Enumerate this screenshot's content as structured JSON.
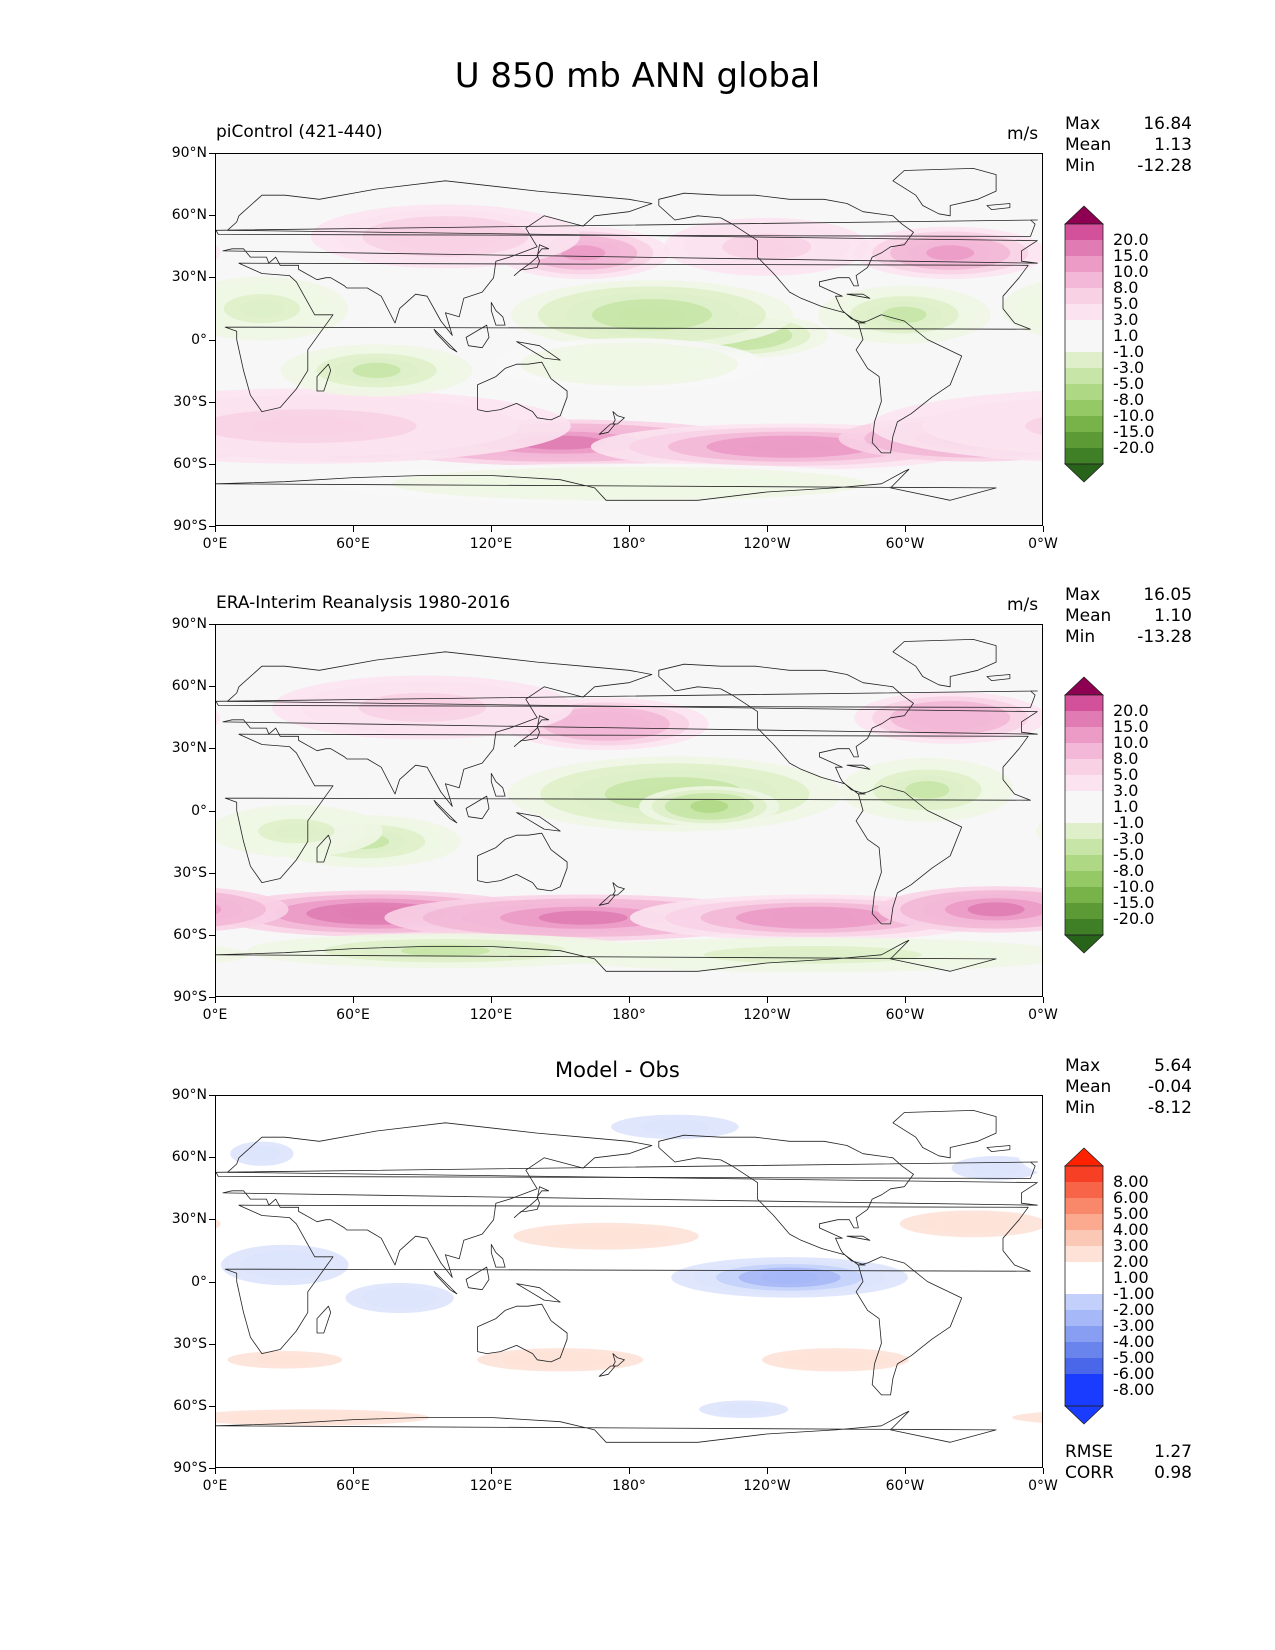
{
  "figure_title": "U 850 mb ANN global",
  "colors": {
    "pos_scale": [
      "#f7f7f7",
      "#fbe3ef",
      "#f8d1e5",
      "#f3b8d7",
      "#eb9bc6",
      "#e07cb3",
      "#d3509b",
      "#c2247f",
      "#a90966",
      "#8e0152"
    ],
    "neg_scale": [
      "#f7f7f7",
      "#eef6e4",
      "#deefc9",
      "#c7e5a6",
      "#afd885",
      "#95c965",
      "#78b34a",
      "#5b9a35",
      "#3f7f26",
      "#276419"
    ],
    "diff_pos": [
      "#ffffff",
      "#fee2d8",
      "#fcc8b6",
      "#fba98f",
      "#f9876a",
      "#f76447",
      "#f63f25",
      "#ff2200"
    ],
    "diff_neg": [
      "#ffffff",
      "#dde4fd",
      "#c3d0fb",
      "#a6b8f7",
      "#889ef3",
      "#6a84ee",
      "#4a67ea",
      "#1a3cff"
    ],
    "coast": "#222222"
  },
  "axes": {
    "yticks": [
      "90°N",
      "60°N",
      "30°N",
      "0°",
      "30°S",
      "60°S",
      "90°S"
    ],
    "xticks": [
      "0°E",
      "60°E",
      "120°E",
      "180°",
      "120°W",
      "60°W",
      "0°W"
    ]
  },
  "panels": [
    {
      "id": "test",
      "label": "piControl (421-440)",
      "units": "m/s",
      "stats": [
        {
          "label": "Max",
          "value": "16.84"
        },
        {
          "label": "Mean",
          "value": "1.13"
        },
        {
          "label": "Min",
          "value": "-12.28"
        }
      ],
      "colorbar": {
        "levels": [
          "20.0",
          "15.0",
          "10.0",
          "8.0",
          "5.0",
          "3.0",
          "1.0",
          "-1.0",
          "-3.0",
          "-5.0",
          "-8.0",
          "-10.0",
          "-15.0",
          "-20.0"
        ],
        "top_color": "#8e0152",
        "bottom_color": "#276419"
      }
    },
    {
      "id": "ref",
      "label": "ERA-Interim Reanalysis 1980-2016",
      "units": "m/s",
      "stats": [
        {
          "label": "Max",
          "value": "16.05"
        },
        {
          "label": "Mean",
          "value": "1.10"
        },
        {
          "label": "Min",
          "value": "-13.28"
        }
      ],
      "colorbar": {
        "levels": [
          "20.0",
          "15.0",
          "10.0",
          "8.0",
          "5.0",
          "3.0",
          "1.0",
          "-1.0",
          "-3.0",
          "-5.0",
          "-8.0",
          "-10.0",
          "-15.0",
          "-20.0"
        ],
        "top_color": "#8e0152",
        "bottom_color": "#276419"
      }
    },
    {
      "id": "diff",
      "title": "Model - Obs",
      "stats": [
        {
          "label": "Max",
          "value": "5.64"
        },
        {
          "label": "Mean",
          "value": "-0.04"
        },
        {
          "label": "Min",
          "value": "-8.12"
        }
      ],
      "extra_stats": [
        {
          "label": "RMSE",
          "value": "1.27"
        },
        {
          "label": "CORR",
          "value": "0.98"
        }
      ],
      "colorbar": {
        "levels": [
          "8.00",
          "6.00",
          "5.00",
          "4.00",
          "3.00",
          "2.00",
          "1.00",
          "-1.00",
          "-2.00",
          "-3.00",
          "-4.00",
          "-5.00",
          "-6.00",
          "-8.00"
        ],
        "top_color": "#ff2200",
        "bottom_color": "#1a3cff"
      }
    }
  ],
  "chart_data": [
    {
      "type": "heatmap",
      "title": "piControl (421-440)",
      "units": "m/s",
      "x": [
        0,
        60,
        120,
        180,
        240,
        300,
        360
      ],
      "xticklabels": [
        "0°E",
        "60°E",
        "120°E",
        "180°",
        "120°W",
        "60°W",
        "0°W"
      ],
      "yticklabels": [
        "90°N",
        "60°N",
        "30°N",
        "0°",
        "30°S",
        "60°S",
        "90°S"
      ],
      "xlim": [
        0,
        360
      ],
      "ylim": [
        -90,
        90
      ],
      "levels": [
        -20,
        -15,
        -10,
        -8,
        -5,
        -3,
        -1,
        1,
        3,
        5,
        8,
        10,
        15,
        20
      ],
      "features": [
        {
          "lon": 60,
          "lat": -48,
          "value": 14,
          "slon": 55,
          "slat": 7
        },
        {
          "lon": 150,
          "lat": -50,
          "value": 11,
          "slon": 60,
          "slat": 7
        },
        {
          "lon": 250,
          "lat": -52,
          "value": 10,
          "slon": 60,
          "slat": 7
        },
        {
          "lon": 330,
          "lat": -48,
          "value": 11,
          "slon": 40,
          "slat": 7
        },
        {
          "lon": 40,
          "lat": -42,
          "value": 4,
          "slon": 80,
          "slat": 12
        },
        {
          "lon": 160,
          "lat": 42,
          "value": 9,
          "slon": 25,
          "slat": 8
        },
        {
          "lon": 320,
          "lat": 42,
          "value": 9,
          "slon": 28,
          "slat": 8
        },
        {
          "lon": 100,
          "lat": 50,
          "value": 5,
          "slon": 40,
          "slat": 10
        },
        {
          "lon": 240,
          "lat": 45,
          "value": 4,
          "slon": 30,
          "slat": 9
        },
        {
          "lon": 225,
          "lat": 2,
          "value": -9,
          "slon": 28,
          "slat": 7
        },
        {
          "lon": 190,
          "lat": 12,
          "value": -7,
          "slon": 42,
          "slat": 11
        },
        {
          "lon": 300,
          "lat": 12,
          "value": -6,
          "slon": 25,
          "slat": 9
        },
        {
          "lon": 70,
          "lat": -15,
          "value": -6,
          "slon": 28,
          "slat": 8
        },
        {
          "lon": 20,
          "lat": 15,
          "value": -4,
          "slon": 25,
          "slat": 10
        },
        {
          "lon": 180,
          "lat": -12,
          "value": -3,
          "slon": 40,
          "slat": 8
        },
        {
          "lon": 180,
          "lat": -70,
          "value": -3,
          "slon": 90,
          "slat": 6
        }
      ]
    },
    {
      "type": "heatmap",
      "title": "ERA-Interim Reanalysis 1980-2016",
      "units": "m/s",
      "x": [
        0,
        60,
        120,
        180,
        240,
        300,
        360
      ],
      "xticklabels": [
        "0°E",
        "60°E",
        "120°E",
        "180°",
        "120°W",
        "60°W",
        "0°W"
      ],
      "yticklabels": [
        "90°N",
        "60°N",
        "30°N",
        "0°",
        "30°S",
        "60°S",
        "90°S"
      ],
      "xlim": [
        0,
        360
      ],
      "ylim": [
        -90,
        90
      ],
      "levels": [
        -20,
        -15,
        -10,
        -8,
        -5,
        -3,
        -1,
        1,
        3,
        5,
        8,
        10,
        15,
        20
      ],
      "features": [
        {
          "lon": 70,
          "lat": -50,
          "value": 13,
          "slon": 50,
          "slat": 7
        },
        {
          "lon": 160,
          "lat": -52,
          "value": 11,
          "slon": 60,
          "slat": 7
        },
        {
          "lon": 260,
          "lat": -52,
          "value": 10,
          "slon": 55,
          "slat": 7
        },
        {
          "lon": 340,
          "lat": -48,
          "value": 11,
          "slon": 35,
          "slat": 7
        },
        {
          "lon": 170,
          "lat": 42,
          "value": 8,
          "slon": 30,
          "slat": 8
        },
        {
          "lon": 320,
          "lat": 45,
          "value": 8,
          "slon": 28,
          "slat": 8
        },
        {
          "lon": 90,
          "lat": 50,
          "value": 4,
          "slon": 45,
          "slat": 10
        },
        {
          "lon": 200,
          "lat": 8,
          "value": -7,
          "slon": 50,
          "slat": 12
        },
        {
          "lon": 215,
          "lat": 2,
          "value": -9,
          "slon": 20,
          "slat": 6
        },
        {
          "lon": 310,
          "lat": 10,
          "value": -6,
          "slon": 25,
          "slat": 10
        },
        {
          "lon": 65,
          "lat": -15,
          "value": -6,
          "slon": 28,
          "slat": 8
        },
        {
          "lon": 35,
          "lat": -10,
          "value": -4,
          "slon": 25,
          "slat": 8
        },
        {
          "lon": 100,
          "lat": -68,
          "value": -6,
          "slon": 60,
          "slat": 5
        },
        {
          "lon": 260,
          "lat": -70,
          "value": -4,
          "slon": 80,
          "slat": 5
        }
      ]
    },
    {
      "type": "heatmap",
      "title": "Model - Obs",
      "x": [
        0,
        60,
        120,
        180,
        240,
        300,
        360
      ],
      "xticklabels": [
        "0°E",
        "60°E",
        "120°E",
        "180°",
        "120°W",
        "60°W",
        "0°W"
      ],
      "yticklabels": [
        "90°N",
        "60°N",
        "30°N",
        "0°",
        "30°S",
        "60°S",
        "90°S"
      ],
      "xlim": [
        0,
        360
      ],
      "ylim": [
        -90,
        90
      ],
      "levels": [
        -8,
        -6,
        -5,
        -4,
        -3,
        -2,
        -1,
        1,
        2,
        3,
        4,
        5,
        6,
        8
      ],
      "features": [
        {
          "lon": 250,
          "lat": 2,
          "value": -4,
          "slon": 35,
          "slat": 6
        },
        {
          "lon": 30,
          "lat": 8,
          "value": -2,
          "slon": 30,
          "slat": 10
        },
        {
          "lon": 80,
          "lat": -8,
          "value": -2,
          "slon": 25,
          "slat": 7
        },
        {
          "lon": 170,
          "lat": 22,
          "value": 2,
          "slon": 45,
          "slat": 6
        },
        {
          "lon": 330,
          "lat": 28,
          "value": 2,
          "slon": 35,
          "slat": 6
        },
        {
          "lon": 150,
          "lat": -38,
          "value": 2,
          "slon": 40,
          "slat": 5
        },
        {
          "lon": 270,
          "lat": -38,
          "value": 2,
          "slon": 35,
          "slat": 5
        },
        {
          "lon": 30,
          "lat": -38,
          "value": 1.5,
          "slon": 40,
          "slat": 5
        },
        {
          "lon": 200,
          "lat": 75,
          "value": -1.5,
          "slon": 45,
          "slat": 8
        },
        {
          "lon": 340,
          "lat": 55,
          "value": -1.5,
          "slon": 30,
          "slat": 8
        },
        {
          "lon": 20,
          "lat": 62,
          "value": -1.5,
          "slon": 20,
          "slat": 8
        },
        {
          "lon": 40,
          "lat": -66,
          "value": 2,
          "slon": 60,
          "slat": 3
        },
        {
          "lon": 230,
          "lat": -62,
          "value": -1.5,
          "slon": 30,
          "slat": 5
        }
      ]
    }
  ]
}
